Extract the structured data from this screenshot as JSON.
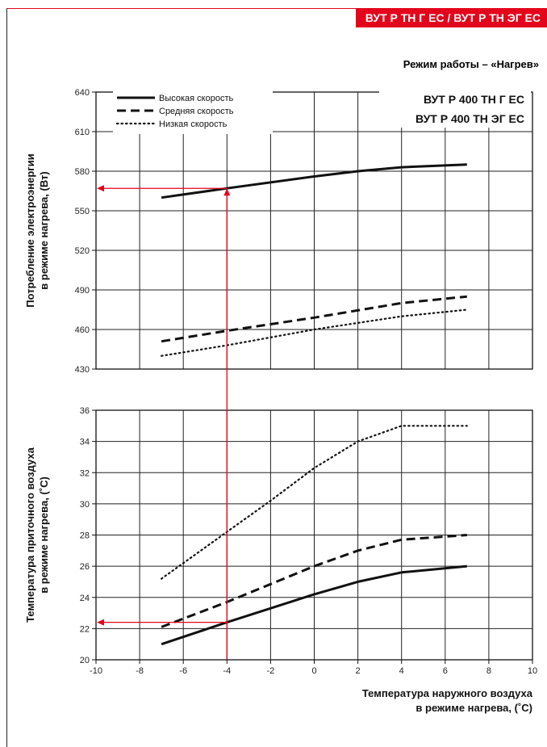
{
  "header": {
    "badge": "ВУТ Р ТН Г ЕС / ВУТ Р ТН ЭГ ЕС"
  },
  "mode_title": "Режим работы – «Нагрев»",
  "models": [
    "ВУТ Р 400 ТН Г ЕС",
    "ВУТ Р 400 ТН ЭГ ЕС"
  ],
  "colors": {
    "accent": "#e3051b",
    "line": "#111111",
    "grid": "#222222"
  },
  "chart_data": [
    {
      "type": "line",
      "ylabel_lines": [
        "Потребление электроэнергии",
        "в режиме нагрева, (Вт)"
      ],
      "xlabel_lines": [],
      "ylim": [
        430,
        640
      ],
      "yticks": [
        430,
        460,
        490,
        520,
        550,
        580,
        610,
        640
      ],
      "xlim": [
        -10,
        10
      ],
      "grid": true,
      "legend_position": "top-left",
      "series": [
        {
          "name": "Высокая скорость",
          "style": "solid",
          "x": [
            -7,
            -4,
            0,
            2,
            4,
            7
          ],
          "values": [
            560,
            567,
            576,
            580,
            583,
            585
          ]
        },
        {
          "name": "Средняя скорость",
          "style": "dashed",
          "x": [
            -7,
            -4,
            0,
            4,
            7
          ],
          "values": [
            451,
            459,
            469,
            480,
            485
          ]
        },
        {
          "name": "Низкая скорость",
          "style": "dotted",
          "x": [
            -7,
            -4,
            0,
            4,
            7
          ],
          "values": [
            440,
            448,
            460,
            470,
            475
          ]
        }
      ],
      "annotation": {
        "x": -4,
        "y": 567
      }
    },
    {
      "type": "line",
      "ylabel_lines": [
        "Температура приточного воздуха",
        "в режиме нагрева, (˚С)"
      ],
      "xlabel_lines": [
        "Температура наружного воздуха",
        "в режиме нагрева, (˚С)"
      ],
      "ylim": [
        20,
        36
      ],
      "yticks": [
        20,
        22,
        24,
        26,
        28,
        30,
        32,
        34,
        36
      ],
      "xlim": [
        -10,
        10
      ],
      "xticks": [
        -10,
        -8,
        -6,
        -4,
        -2,
        0,
        2,
        4,
        6,
        8,
        10
      ],
      "grid": true,
      "series": [
        {
          "style": "solid",
          "x": [
            -7,
            -4,
            0,
            2,
            4,
            7
          ],
          "values": [
            21.0,
            22.4,
            24.2,
            25.0,
            25.6,
            26.0
          ]
        },
        {
          "style": "dashed",
          "x": [
            -7,
            -4,
            0,
            2,
            4,
            7
          ],
          "values": [
            22.1,
            23.7,
            26.0,
            27.0,
            27.7,
            28.0
          ]
        },
        {
          "style": "dotted",
          "x": [
            -7,
            -6,
            -4,
            -2,
            0,
            2,
            4,
            7
          ],
          "values": [
            25.2,
            26.2,
            28.2,
            30.2,
            32.3,
            34.0,
            35.0,
            35.0
          ]
        }
      ],
      "annotation": {
        "x": -4,
        "y": 22.4
      }
    }
  ]
}
